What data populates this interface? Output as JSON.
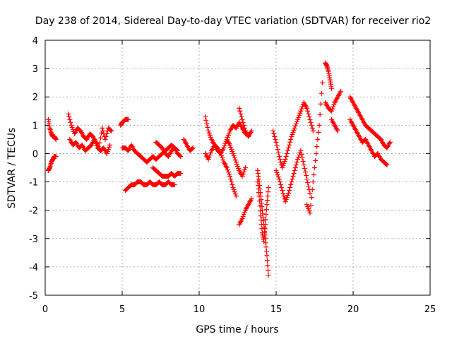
{
  "chart_data": {
    "type": "scatter",
    "title": "Day 238 of 2014, Sidereal Day-to-day VTEC variation (SDTVAR) for receiver rio2",
    "xlabel": "GPS time / hours",
    "ylabel": "SDTVAR / TECUs",
    "xlim": [
      0,
      25
    ],
    "ylim": [
      -5,
      4
    ],
    "xticks": [
      0,
      5,
      10,
      15,
      20,
      25
    ],
    "yticks": [
      -5,
      -4,
      -3,
      -2,
      -1,
      0,
      1,
      2,
      3,
      4
    ],
    "grid": true,
    "marker": "plus",
    "color": "#ff0000",
    "series": [
      {
        "name": "SDTVAR",
        "segments": [
          {
            "x": [
              0.2,
              0.3,
              0.4,
              0.5,
              0.6,
              0.7
            ],
            "y": [
              1.2,
              0.9,
              0.7,
              0.6,
              0.6,
              0.5
            ]
          },
          {
            "x": [
              0.2,
              0.3,
              0.4,
              0.5,
              0.6,
              0.7
            ],
            "y": [
              -0.6,
              -0.5,
              -0.3,
              -0.2,
              -0.1,
              -0.1
            ]
          },
          {
            "x": [
              1.5,
              1.7,
              1.9,
              2.1,
              2.3,
              2.5,
              2.7,
              2.9,
              3.1,
              3.3,
              3.5,
              3.7,
              3.9,
              4.1,
              4.3
            ],
            "y": [
              1.4,
              1.0,
              0.7,
              0.9,
              0.8,
              0.6,
              0.5,
              0.7,
              0.6,
              0.4,
              0.2,
              0.9,
              0.5,
              0.9,
              0.8
            ]
          },
          {
            "x": [
              1.6,
              1.8,
              2.0,
              2.2,
              2.4,
              2.6,
              2.8,
              3.0,
              3.2,
              3.4,
              3.6,
              3.8,
              4.0,
              4.2
            ],
            "y": [
              0.5,
              0.3,
              0.4,
              0.2,
              0.3,
              0.1,
              0.2,
              0.3,
              0.5,
              0.2,
              0.1,
              0.2,
              0.0,
              0.3
            ]
          },
          {
            "x": [
              4.9,
              5.0,
              5.2,
              5.4
            ],
            "y": [
              1.0,
              1.1,
              1.2,
              1.2
            ]
          },
          {
            "x": [
              5.0,
              5.2,
              5.4,
              5.6,
              5.8,
              6.0,
              6.2,
              6.4,
              6.6,
              6.8,
              7.0,
              7.2,
              7.4,
              7.6,
              7.8,
              8.0,
              8.2,
              8.4,
              8.6
            ],
            "y": [
              0.2,
              0.2,
              0.1,
              0.3,
              0.1,
              0.0,
              -0.1,
              -0.2,
              -0.3,
              -0.2,
              -0.1,
              -0.2,
              -0.1,
              0.0,
              0.1,
              0.2,
              0.3,
              0.2,
              0.1
            ]
          },
          {
            "x": [
              5.2,
              5.4,
              5.6,
              5.8,
              6.0,
              6.2,
              6.4,
              6.6,
              6.8,
              7.0,
              7.2,
              7.4,
              7.6,
              7.8,
              8.0,
              8.2,
              8.4
            ],
            "y": [
              -1.3,
              -1.2,
              -1.1,
              -1.1,
              -1.0,
              -1.0,
              -1.1,
              -1.1,
              -1.0,
              -1.1,
              -1.1,
              -1.0,
              -1.1,
              -1.1,
              -1.0,
              -1.1,
              -1.1
            ]
          },
          {
            "x": [
              7.0,
              7.2,
              7.4,
              7.6,
              7.8,
              8.0,
              8.2,
              8.4,
              8.6,
              8.8
            ],
            "y": [
              -0.5,
              -0.6,
              -0.7,
              -0.8,
              -0.8,
              -0.8,
              -0.7,
              -0.8,
              -0.7,
              -0.7
            ]
          },
          {
            "x": [
              7.2,
              7.4,
              7.6,
              7.8,
              8.0,
              8.2,
              8.4,
              8.6,
              8.8
            ],
            "y": [
              0.4,
              0.3,
              0.2,
              0.0,
              -0.1,
              0.1,
              0.2,
              0.0,
              -0.1
            ]
          },
          {
            "x": [
              9.0,
              9.2,
              9.4,
              9.6
            ],
            "y": [
              0.5,
              0.3,
              0.1,
              0.2
            ]
          },
          {
            "x": [
              10.4,
              10.6,
              10.8,
              11.0,
              11.2,
              11.4,
              11.6,
              11.8,
              12.0,
              12.2,
              12.4,
              12.6,
              12.8,
              13.0
            ],
            "y": [
              1.3,
              0.8,
              0.5,
              0.3,
              0.1,
              0.0,
              0.2,
              0.5,
              0.8,
              1.0,
              0.9,
              1.1,
              0.9,
              0.7
            ]
          },
          {
            "x": [
              10.4,
              10.6,
              10.8,
              11.0,
              11.2,
              11.4,
              11.6,
              11.8,
              12.0,
              12.2,
              12.4
            ],
            "y": [
              0.0,
              -0.2,
              0.1,
              0.3,
              0.2,
              0.0,
              -0.3,
              -0.5,
              -0.8,
              -1.2,
              -1.5
            ]
          },
          {
            "x": [
              11.8,
              12.0,
              12.2,
              12.4,
              12.6,
              12.8,
              13.0
            ],
            "y": [
              0.5,
              0.3,
              0.0,
              -0.3,
              -0.6,
              -0.8,
              -0.5
            ]
          },
          {
            "x": [
              12.6,
              12.8,
              13.0,
              13.2,
              13.4
            ],
            "y": [
              1.6,
              1.2,
              0.8,
              0.6,
              0.8
            ]
          },
          {
            "x": [
              12.6,
              12.8,
              13.0,
              13.2,
              13.4
            ],
            "y": [
              -2.5,
              -2.3,
              -2.0,
              -1.8,
              -1.6
            ]
          },
          {
            "x": [
              13.8,
              13.9,
              14.0,
              14.1,
              14.2,
              14.3,
              14.4,
              14.5
            ],
            "y": [
              -0.6,
              -1.0,
              -1.5,
              -2.0,
              -2.5,
              -3.0,
              -3.6,
              -4.3
            ]
          },
          {
            "x": [
              13.8,
              13.9,
              14.0,
              14.1,
              14.2,
              14.3,
              14.4,
              14.5
            ],
            "y": [
              -1.0,
              -1.5,
              -2.2,
              -2.8,
              -3.1,
              -2.5,
              -1.8,
              -1.2
            ]
          },
          {
            "x": [
              14.8,
              15.0,
              15.2,
              15.4,
              15.6,
              15.8,
              16.0,
              16.2,
              16.4,
              16.6,
              16.8,
              17.0,
              17.2,
              17.4
            ],
            "y": [
              0.8,
              0.4,
              -0.1,
              -0.5,
              -0.2,
              0.2,
              0.6,
              0.9,
              1.2,
              1.5,
              1.8,
              1.6,
              1.2,
              0.8
            ]
          },
          {
            "x": [
              15.0,
              15.2,
              15.4,
              15.6,
              15.8,
              16.0,
              16.2,
              16.4,
              16.6,
              16.8,
              17.0,
              17.2
            ],
            "y": [
              -0.6,
              -0.9,
              -1.3,
              -1.7,
              -1.4,
              -1.0,
              -0.6,
              -0.2,
              0.1,
              -0.4,
              -0.9,
              -1.4
            ]
          },
          {
            "x": [
              17.0,
              17.2,
              17.4,
              17.6,
              17.8,
              18.0
            ],
            "y": [
              -1.8,
              -2.1,
              -1.0,
              0.0,
              1.0,
              2.5
            ]
          },
          {
            "x": [
              18.2,
              18.3,
              18.4,
              18.5,
              18.6
            ],
            "y": [
              3.2,
              3.1,
              2.9,
              2.6,
              2.3
            ]
          },
          {
            "x": [
              18.2,
              18.4,
              18.6,
              18.8,
              19.0,
              19.2
            ],
            "y": [
              1.8,
              1.6,
              1.5,
              1.8,
              2.0,
              2.2
            ]
          },
          {
            "x": [
              18.6,
              18.8,
              19.0
            ],
            "y": [
              1.2,
              1.0,
              0.8
            ]
          },
          {
            "x": [
              19.8,
              20.0,
              20.2,
              20.4,
              20.6,
              20.8,
              21.0,
              21.2,
              21.4,
              21.6,
              21.8,
              22.0,
              22.2,
              22.4
            ],
            "y": [
              2.0,
              1.8,
              1.6,
              1.4,
              1.2,
              1.0,
              0.9,
              0.8,
              0.7,
              0.6,
              0.5,
              0.3,
              0.2,
              0.4
            ]
          },
          {
            "x": [
              19.8,
              20.0,
              20.2,
              20.4,
              20.6,
              20.8,
              21.0,
              21.2,
              21.4,
              21.6,
              21.8,
              22.0,
              22.2
            ],
            "y": [
              1.2,
              1.0,
              0.8,
              0.6,
              0.4,
              0.5,
              0.3,
              0.1,
              -0.1,
              0.0,
              -0.2,
              -0.3,
              -0.4
            ]
          }
        ]
      }
    ]
  }
}
